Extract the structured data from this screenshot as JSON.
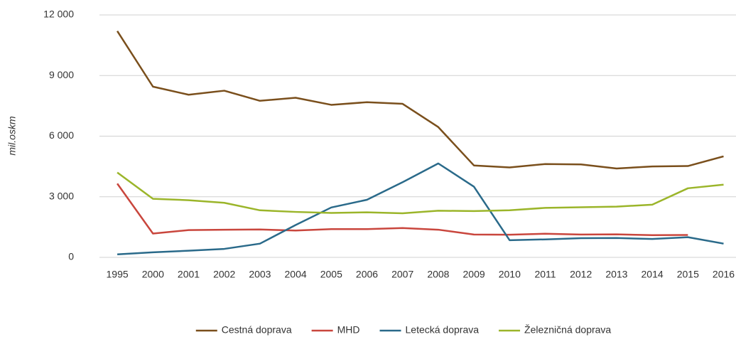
{
  "chart_data": {
    "type": "line",
    "y_label": "mil.oskm",
    "categories": [
      "1995",
      "2000",
      "2001",
      "2002",
      "2003",
      "2004",
      "2005",
      "2006",
      "2007",
      "2008",
      "2009",
      "2010",
      "2011",
      "2012",
      "2013",
      "2014",
      "2015",
      "2016"
    ],
    "series": [
      {
        "name": "Cestná doprava",
        "color": "#7a4f1c",
        "values": [
          11200,
          8450,
          8050,
          8250,
          7750,
          7900,
          7550,
          7680,
          7600,
          6450,
          4550,
          4450,
          4620,
          4600,
          4400,
          4500,
          4520,
          5000
        ]
      },
      {
        "name": "MHD",
        "color": "#c9463d",
        "values": [
          3650,
          1180,
          1350,
          1370,
          1380,
          1330,
          1400,
          1400,
          1450,
          1370,
          1130,
          1120,
          1170,
          1130,
          1140,
          1100,
          1110,
          null
        ]
      },
      {
        "name": "Letecká doprava",
        "color": "#2a6a8a",
        "values": [
          150,
          250,
          330,
          420,
          680,
          1600,
          2470,
          2850,
          3720,
          4650,
          3500,
          850,
          890,
          950,
          960,
          910,
          1000,
          680
        ]
      },
      {
        "name": "Železničná doprava",
        "color": "#9bb52a",
        "values": [
          4200,
          2900,
          2830,
          2700,
          2330,
          2250,
          2200,
          2230,
          2180,
          2310,
          2290,
          2330,
          2450,
          2480,
          2510,
          2610,
          3420,
          3600
        ]
      }
    ],
    "ylim": [
      0,
      12000
    ],
    "yticks": [
      {
        "value": 0,
        "label": "0"
      },
      {
        "value": 3000,
        "label": "3 000"
      },
      {
        "value": 6000,
        "label": "6 000"
      },
      {
        "value": 9000,
        "label": "9 000"
      },
      {
        "value": 12000,
        "label": "12 000"
      }
    ],
    "grid": true,
    "legend": "bottom"
  }
}
